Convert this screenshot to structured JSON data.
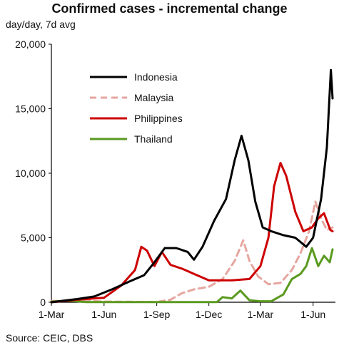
{
  "chart_data": {
    "type": "line",
    "title": "Confirmed cases - incremental change",
    "subtitle": "day/day, 7d avg",
    "source": "Source: CEIC, DBS",
    "ylim": [
      0,
      20000
    ],
    "y_ticks": [
      0,
      5000,
      10000,
      15000,
      20000
    ],
    "y_tick_labels": [
      "0",
      "5,000",
      "10,000",
      "15,000",
      "20,000"
    ],
    "x_range": [
      "2020-03-01",
      "2021-07-10"
    ],
    "x_ticks": [
      "2020-03-01",
      "2020-06-01",
      "2020-09-01",
      "2020-12-01",
      "2021-03-01",
      "2021-06-01"
    ],
    "x_tick_labels": [
      "1-Mar",
      "1-Jun",
      "1-Sep",
      "1-Dec",
      "1-Mar",
      "1-Jun"
    ],
    "legend_position": "top-left",
    "series": [
      {
        "name": "Indonesia",
        "color": "#000000",
        "style": "solid",
        "points": [
          [
            "2020-03-01",
            0
          ],
          [
            "2020-04-15",
            250
          ],
          [
            "2020-05-15",
            450
          ],
          [
            "2020-06-15",
            1000
          ],
          [
            "2020-07-15",
            1600
          ],
          [
            "2020-08-10",
            2100
          ],
          [
            "2020-08-28",
            3100
          ],
          [
            "2020-09-15",
            4200
          ],
          [
            "2020-10-05",
            4200
          ],
          [
            "2020-10-25",
            3900
          ],
          [
            "2020-11-05",
            3300
          ],
          [
            "2020-11-20",
            4300
          ],
          [
            "2020-12-10",
            6300
          ],
          [
            "2020-12-31",
            8000
          ],
          [
            "2021-01-15",
            11000
          ],
          [
            "2021-01-27",
            12900
          ],
          [
            "2021-02-08",
            11000
          ],
          [
            "2021-02-20",
            7800
          ],
          [
            "2021-03-05",
            5800
          ],
          [
            "2021-03-20",
            5500
          ],
          [
            "2021-04-10",
            5200
          ],
          [
            "2021-05-01",
            5000
          ],
          [
            "2021-05-20",
            4300
          ],
          [
            "2021-06-01",
            5000
          ],
          [
            "2021-06-15",
            8000
          ],
          [
            "2021-06-25",
            12000
          ],
          [
            "2021-07-02",
            18000
          ],
          [
            "2021-07-05",
            15800
          ]
        ]
      },
      {
        "name": "Malaysia",
        "color": "#e6a6a0",
        "style": "dashed",
        "points": [
          [
            "2020-03-01",
            100
          ],
          [
            "2020-04-15",
            150
          ],
          [
            "2020-06-01",
            50
          ],
          [
            "2020-09-01",
            20
          ],
          [
            "2020-09-25",
            200
          ],
          [
            "2020-10-15",
            700
          ],
          [
            "2020-11-05",
            1000
          ],
          [
            "2020-12-01",
            1200
          ],
          [
            "2020-12-25",
            1800
          ],
          [
            "2021-01-15",
            3200
          ],
          [
            "2021-01-30",
            4800
          ],
          [
            "2021-02-10",
            3200
          ],
          [
            "2021-02-25",
            2000
          ],
          [
            "2021-03-15",
            1400
          ],
          [
            "2021-04-05",
            1500
          ],
          [
            "2021-04-25",
            2500
          ],
          [
            "2021-05-10",
            3800
          ],
          [
            "2021-05-25",
            5500
          ],
          [
            "2021-06-05",
            7800
          ],
          [
            "2021-06-15",
            6500
          ],
          [
            "2021-06-25",
            5600
          ],
          [
            "2021-07-05",
            5800
          ]
        ]
      },
      {
        "name": "Philippines",
        "color": "#cc0000",
        "style": "solid",
        "points": [
          [
            "2020-03-01",
            0
          ],
          [
            "2020-04-15",
            200
          ],
          [
            "2020-06-01",
            350
          ],
          [
            "2020-07-01",
            1300
          ],
          [
            "2020-07-25",
            2500
          ],
          [
            "2020-08-05",
            4300
          ],
          [
            "2020-08-15",
            4000
          ],
          [
            "2020-08-28",
            2800
          ],
          [
            "2020-09-10",
            3900
          ],
          [
            "2020-09-25",
            2900
          ],
          [
            "2020-10-15",
            2600
          ],
          [
            "2020-11-05",
            2200
          ],
          [
            "2020-12-01",
            1700
          ],
          [
            "2021-01-10",
            1700
          ],
          [
            "2021-02-10",
            1800
          ],
          [
            "2021-03-01",
            2800
          ],
          [
            "2021-03-15",
            5000
          ],
          [
            "2021-03-25",
            9000
          ],
          [
            "2021-04-05",
            10800
          ],
          [
            "2021-04-15",
            9800
          ],
          [
            "2021-05-01",
            7000
          ],
          [
            "2021-05-15",
            5500
          ],
          [
            "2021-05-30",
            5800
          ],
          [
            "2021-06-10",
            6500
          ],
          [
            "2021-06-20",
            6900
          ],
          [
            "2021-07-01",
            5600
          ],
          [
            "2021-07-05",
            5500
          ]
        ]
      },
      {
        "name": "Thailand",
        "color": "#5a9a1f",
        "style": "solid",
        "points": [
          [
            "2020-03-01",
            50
          ],
          [
            "2020-04-01",
            120
          ],
          [
            "2020-05-01",
            10
          ],
          [
            "2020-12-15",
            10
          ],
          [
            "2020-12-25",
            400
          ],
          [
            "2021-01-10",
            300
          ],
          [
            "2021-01-25",
            900
          ],
          [
            "2021-02-10",
            150
          ],
          [
            "2021-03-01",
            80
          ],
          [
            "2021-03-20",
            80
          ],
          [
            "2021-04-10",
            600
          ],
          [
            "2021-04-25",
            1800
          ],
          [
            "2021-05-10",
            2200
          ],
          [
            "2021-05-20",
            2800
          ],
          [
            "2021-05-30",
            4200
          ],
          [
            "2021-06-10",
            2800
          ],
          [
            "2021-06-20",
            3600
          ],
          [
            "2021-06-30",
            3100
          ],
          [
            "2021-07-05",
            4100
          ]
        ]
      }
    ]
  }
}
